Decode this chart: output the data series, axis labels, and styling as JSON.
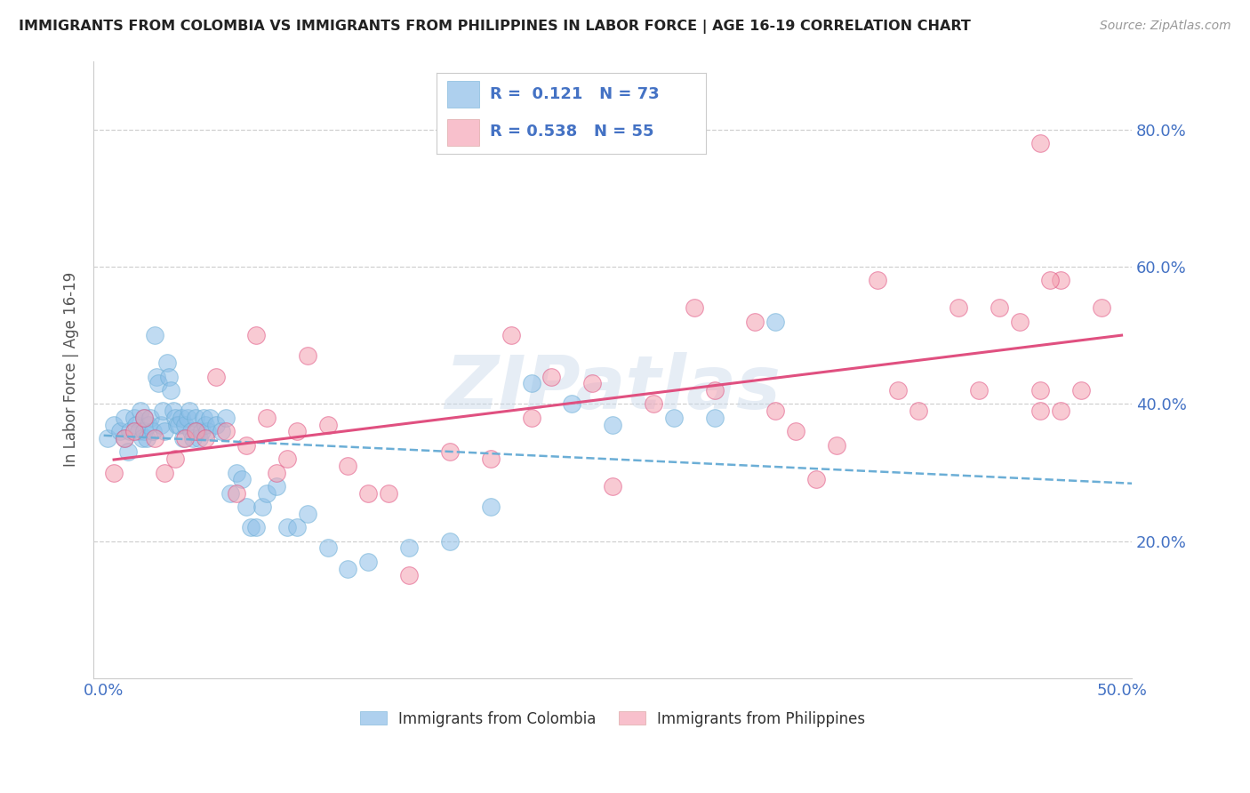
{
  "title": "IMMIGRANTS FROM COLOMBIA VS IMMIGRANTS FROM PHILIPPINES IN LABOR FORCE | AGE 16-19 CORRELATION CHART",
  "source": "Source: ZipAtlas.com",
  "ylabel": "In Labor Force | Age 16-19",
  "xlim": [
    -0.005,
    0.505
  ],
  "ylim": [
    0.0,
    0.9
  ],
  "ytick_vals": [
    0.2,
    0.4,
    0.6,
    0.8
  ],
  "xtick_vals": [
    0.0,
    0.5
  ],
  "colombia_color": "#8dbfe8",
  "colombia_fill_color": "#aed0ee",
  "philippines_color": "#f4a0b0",
  "philippines_fill_color": "#f8c0cc",
  "colombia_line_color": "#6baed6",
  "philippines_line_color": "#e05080",
  "R_colombia": 0.121,
  "N_colombia": 73,
  "R_philippines": 0.538,
  "N_philippines": 55,
  "colombia_scatter_x": [
    0.002,
    0.005,
    0.008,
    0.01,
    0.01,
    0.012,
    0.013,
    0.015,
    0.016,
    0.017,
    0.018,
    0.019,
    0.02,
    0.02,
    0.021,
    0.022,
    0.023,
    0.024,
    0.025,
    0.026,
    0.027,
    0.028,
    0.029,
    0.03,
    0.031,
    0.032,
    0.033,
    0.034,
    0.035,
    0.036,
    0.037,
    0.038,
    0.039,
    0.04,
    0.041,
    0.042,
    0.043,
    0.044,
    0.045,
    0.046,
    0.047,
    0.048,
    0.049,
    0.05,
    0.051,
    0.052,
    0.055,
    0.058,
    0.06,
    0.062,
    0.065,
    0.068,
    0.07,
    0.072,
    0.075,
    0.078,
    0.08,
    0.085,
    0.09,
    0.095,
    0.1,
    0.11,
    0.12,
    0.13,
    0.15,
    0.17,
    0.19,
    0.21,
    0.23,
    0.25,
    0.28,
    0.3,
    0.33
  ],
  "colombia_scatter_y": [
    0.35,
    0.37,
    0.36,
    0.38,
    0.35,
    0.33,
    0.36,
    0.38,
    0.37,
    0.36,
    0.39,
    0.35,
    0.38,
    0.36,
    0.35,
    0.37,
    0.38,
    0.36,
    0.5,
    0.44,
    0.43,
    0.37,
    0.39,
    0.36,
    0.46,
    0.44,
    0.42,
    0.39,
    0.38,
    0.37,
    0.37,
    0.38,
    0.35,
    0.37,
    0.38,
    0.39,
    0.36,
    0.35,
    0.38,
    0.36,
    0.35,
    0.36,
    0.38,
    0.37,
    0.36,
    0.38,
    0.37,
    0.36,
    0.38,
    0.27,
    0.3,
    0.29,
    0.25,
    0.22,
    0.22,
    0.25,
    0.27,
    0.28,
    0.22,
    0.22,
    0.24,
    0.19,
    0.16,
    0.17,
    0.19,
    0.2,
    0.25,
    0.43,
    0.4,
    0.37,
    0.38,
    0.38,
    0.52
  ],
  "philippines_scatter_x": [
    0.005,
    0.01,
    0.015,
    0.02,
    0.025,
    0.03,
    0.035,
    0.04,
    0.045,
    0.05,
    0.055,
    0.06,
    0.065,
    0.07,
    0.075,
    0.08,
    0.085,
    0.09,
    0.095,
    0.1,
    0.11,
    0.12,
    0.13,
    0.14,
    0.15,
    0.17,
    0.19,
    0.2,
    0.21,
    0.22,
    0.24,
    0.25,
    0.27,
    0.29,
    0.3,
    0.32,
    0.33,
    0.34,
    0.35,
    0.36,
    0.38,
    0.39,
    0.4,
    0.42,
    0.43,
    0.44,
    0.45,
    0.46,
    0.47,
    0.46,
    0.465,
    0.47,
    0.48,
    0.49,
    0.46
  ],
  "philippines_scatter_y": [
    0.3,
    0.35,
    0.36,
    0.38,
    0.35,
    0.3,
    0.32,
    0.35,
    0.36,
    0.35,
    0.44,
    0.36,
    0.27,
    0.34,
    0.5,
    0.38,
    0.3,
    0.32,
    0.36,
    0.47,
    0.37,
    0.31,
    0.27,
    0.27,
    0.15,
    0.33,
    0.32,
    0.5,
    0.38,
    0.44,
    0.43,
    0.28,
    0.4,
    0.54,
    0.42,
    0.52,
    0.39,
    0.36,
    0.29,
    0.34,
    0.58,
    0.42,
    0.39,
    0.54,
    0.42,
    0.54,
    0.52,
    0.39,
    0.58,
    0.42,
    0.58,
    0.39,
    0.42,
    0.54,
    0.78
  ],
  "watermark": "ZIPatlas",
  "background_color": "#ffffff",
  "grid_color": "#d0d0d0",
  "tick_color": "#4472c4",
  "label_color": "#555555",
  "title_color": "#222222"
}
